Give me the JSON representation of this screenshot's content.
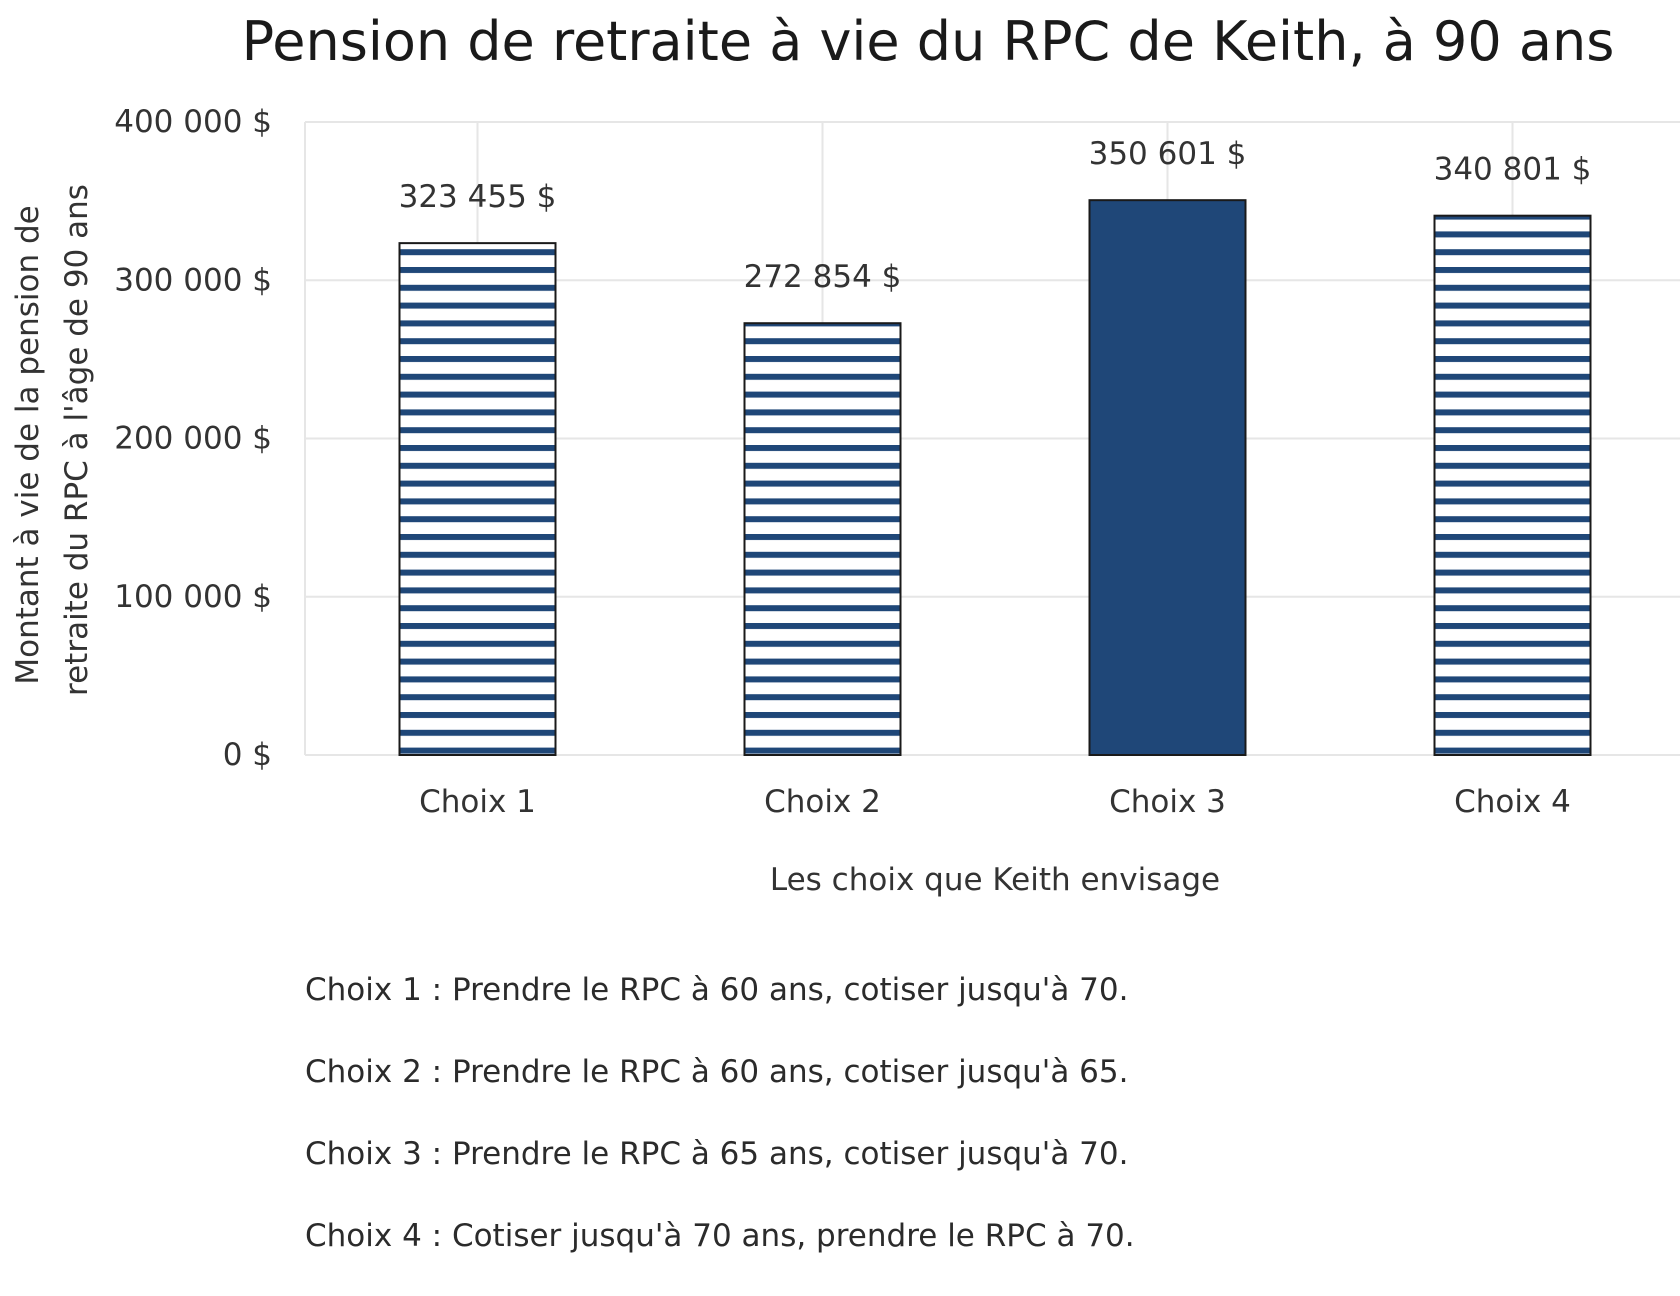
{
  "chart_data": {
    "type": "bar",
    "title": "Pension de retraite à vie du RPC de Keith, à 90 ans",
    "xlabel": "Les choix que Keith envisage",
    "ylabel": "Montant à vie de la pension de retraite du RPC à l'âge de 90 ans",
    "categories": [
      "Choix 1",
      "Choix 2",
      "Choix 3",
      "Choix 4"
    ],
    "values": [
      323455,
      272854,
      350601,
      340801
    ],
    "data_labels": [
      "323 455 $",
      "272 854 $",
      "350 601 $",
      "340 801 $"
    ],
    "bar_styles": [
      "striped",
      "striped",
      "solid",
      "striped"
    ],
    "ylim": [
      0,
      400000
    ],
    "yticks": [
      0,
      100000,
      200000,
      300000,
      400000
    ],
    "ytick_labels": [
      "0 $",
      "100 000 $",
      "200 000 $",
      "300 000 $",
      "400 000 $"
    ],
    "grid": true,
    "colors": {
      "bar": "#1f4778",
      "grid": "#e6e6e6",
      "text": "#333333"
    }
  },
  "notes": [
    "Choix 1 : Prendre le RPC à 60 ans, cotiser jusqu'à 70.",
    "Choix 2 : Prendre le RPC à 60 ans, cotiser jusqu'à 65.",
    "Choix 3 : Prendre le RPC à 65 ans, cotiser jusqu'à 70.",
    "Choix 4 : Cotiser jusqu'à 70 ans, prendre le RPC à 70."
  ]
}
